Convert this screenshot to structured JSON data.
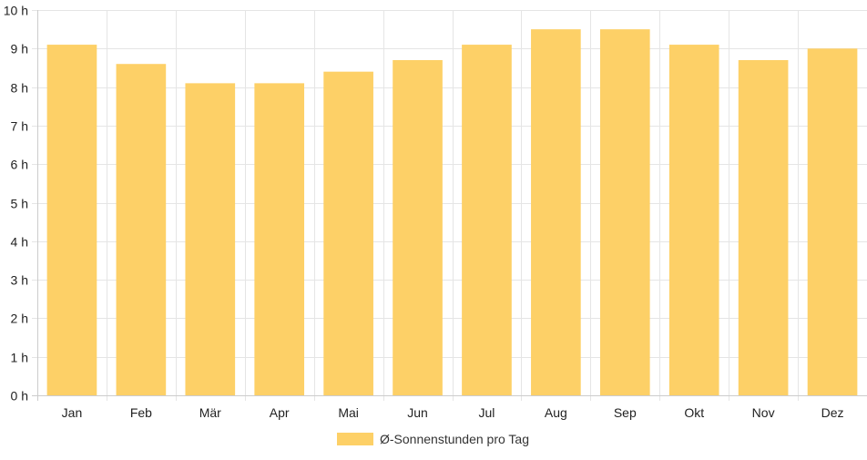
{
  "chart_data": {
    "type": "bar",
    "categories": [
      "Jan",
      "Feb",
      "Mär",
      "Apr",
      "Mai",
      "Jun",
      "Jul",
      "Aug",
      "Sep",
      "Okt",
      "Nov",
      "Dez"
    ],
    "series": [
      {
        "name": "Ø-Sonnenstunden pro Tag",
        "values": [
          9.1,
          8.6,
          8.1,
          8.1,
          8.4,
          8.7,
          9.1,
          9.5,
          9.5,
          9.1,
          8.7,
          9.0
        ]
      }
    ],
    "title": "",
    "xlabel": "",
    "ylabel": "",
    "ylim": [
      0,
      10
    ],
    "y_ticks": [
      "0 h",
      "1 h",
      "2 h",
      "3 h",
      "4 h",
      "5 h",
      "6 h",
      "7 h",
      "8 h",
      "9 h",
      "10 h"
    ],
    "grid": true,
    "legend_position": "bottom",
    "colors": {
      "bar": "#fdd067",
      "grid": "#e5e5e5",
      "axis": "#cccccc"
    }
  }
}
